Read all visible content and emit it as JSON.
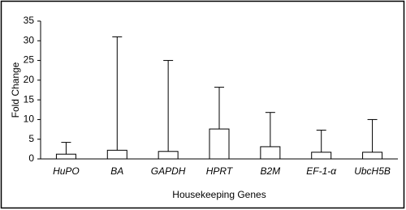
{
  "chart_data": {
    "type": "bar",
    "categories": [
      "HuPO",
      "BA",
      "GAPDH",
      "HPRT",
      "B2M",
      "EF-1-α",
      "UbcH5B"
    ],
    "values": [
      1.2,
      2.2,
      1.9,
      7.6,
      3.1,
      1.7,
      1.7
    ],
    "errors": [
      3.0,
      28.8,
      23.1,
      10.6,
      8.7,
      5.6,
      8.3
    ],
    "color": "#ffffff",
    "ylim": [
      0,
      35
    ],
    "yticks": [
      0,
      5,
      10,
      15,
      20,
      25,
      30,
      35
    ],
    "y_label": "Fold Change",
    "x_label": "Housekeeping Genes"
  }
}
